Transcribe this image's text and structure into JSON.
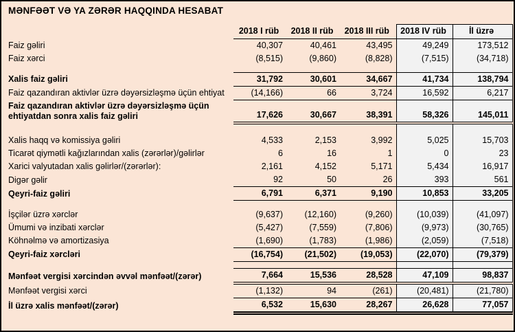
{
  "title": "MƏNFƏƏT VƏ YA ZƏRƏR HAQQINDA HESABAT",
  "colors": {
    "page_background": "#FBE5D6",
    "highlight_column_background": "#F2F2F2",
    "border": "#000000"
  },
  "table": {
    "column_headers": [
      "2018 I rüb",
      "2018 II rüb",
      "2018 III rüb",
      "2018 IV rüb",
      "İl üzrə"
    ],
    "boxed_columns": [
      "2018 IV rüb",
      "İl üzrə"
    ],
    "rows": [
      {
        "label": "Faiz gəliri",
        "values": [
          "40,307",
          "40,461",
          "43,495",
          "49,249",
          "173,512"
        ]
      },
      {
        "label": "Faiz xərci",
        "values": [
          "(8,515)",
          "(9,860)",
          "(8,828)",
          "(7,515)",
          "(34,718)"
        ]
      },
      {
        "spacer": 10
      },
      {
        "label": "Xalis faiz gəliri",
        "values": [
          "31,792",
          "30,601",
          "34,667",
          "41,734",
          "138,794"
        ],
        "bold": true,
        "top": "single",
        "bottom": "single"
      },
      {
        "label": "Faiz qazandıran aktivlər üzrə dəyərsizləşmə üçün ehtiyat",
        "values": [
          "(14,166)",
          "66",
          "3,724",
          "16,592",
          "6,217"
        ],
        "bottom": "single"
      },
      {
        "label": "Faiz qazandıran aktivlər üzrə dəyərsizləşmə üçün ehtiyatdan sonra xalis faiz gəliri",
        "values": [
          "17,626",
          "30,667",
          "38,391",
          "58,326",
          "145,011"
        ],
        "bold": true,
        "bottom": "double"
      },
      {
        "spacer": 16
      },
      {
        "label": "Xalis haqq və komissiya gəliri",
        "values": [
          "4,533",
          "2,153",
          "3,992",
          "5,025",
          "15,703"
        ]
      },
      {
        "label": "Ticarət qiymətli kağızlarından xalis (zərərlər)/gəlirlər",
        "values": [
          "6",
          "16",
          "1",
          "0",
          "23"
        ]
      },
      {
        "label": "Xarici valyutadan xalis gəlirlər/(zərərlər):",
        "values": [
          "2,161",
          "4,152",
          "5,171",
          "5,434",
          "16,917"
        ]
      },
      {
        "label": "Digər gəlir",
        "values": [
          "92",
          "50",
          "26",
          "393",
          "561"
        ]
      },
      {
        "label": "Qeyri-faiz gəliri",
        "values": [
          "6,791",
          "6,371",
          "9,190",
          "10,853",
          "33,205"
        ],
        "bold": true,
        "top": "single",
        "bottom": "single"
      },
      {
        "spacer": 11
      },
      {
        "label": "İşçilər üzrə xərclər",
        "values": [
          "(9,637)",
          "(12,160)",
          "(9,260)",
          "(10,039)",
          "(41,097)"
        ]
      },
      {
        "label": "Ümumi və inzibati xərclər",
        "values": [
          "(5,427)",
          "(7,559)",
          "(7,806)",
          "(9,973)",
          "(30,765)"
        ]
      },
      {
        "label": "Köhnəlmə və amortizasiya",
        "values": [
          "(1,690)",
          "(1,783)",
          "(1,986)",
          "(2,059)",
          "(7,518)"
        ]
      },
      {
        "label": "Qeyri-faiz xərcləri",
        "values": [
          "(16,754)",
          "(21,502)",
          "(19,053)",
          "(22,070)",
          "(79,379)"
        ],
        "bold": true,
        "top": "single",
        "bottom": "single"
      },
      {
        "spacer": 10
      },
      {
        "label": "Mənfəət vergisi xərcindən əvvəl mənfəət/(zərər)",
        "values": [
          "7,664",
          "15,536",
          "28,528",
          "47,109",
          "98,837"
        ],
        "bold": true,
        "top": "single",
        "bottom": "double"
      },
      {
        "label": "Mənfəət vergisi xərci",
        "values": [
          "(1,132)",
          "94",
          "(261)",
          "(20,481)",
          "(21,780)"
        ],
        "bottom": "single"
      },
      {
        "label": "İl üzrə xalis mənfəət/(zərər)",
        "values": [
          "6,532",
          "15,630",
          "28,267",
          "26,628",
          "77,057"
        ],
        "bold": true,
        "bottom": "double-thick"
      }
    ]
  }
}
